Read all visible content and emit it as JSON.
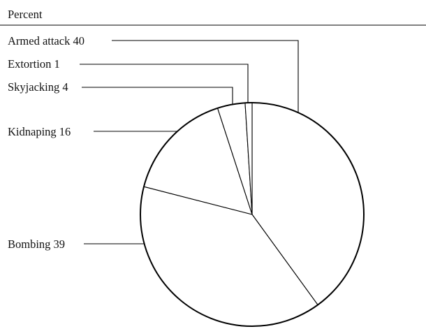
{
  "header": {
    "unit_label": "Percent"
  },
  "chart_data": {
    "type": "pie",
    "title": "",
    "unit": "Percent",
    "start_angle_deg": 0,
    "direction": "clockwise",
    "slices": [
      {
        "name": "Armed attack",
        "value": 40,
        "label": "Armed attack 40"
      },
      {
        "name": "Bombing",
        "value": 39,
        "label": "Bombing 39"
      },
      {
        "name": "Kidnaping",
        "value": 16,
        "label": "Kidnaping 16"
      },
      {
        "name": "Skyjacking",
        "value": 4,
        "label": "Skyjacking 4"
      },
      {
        "name": "Extortion",
        "value": 1,
        "label": "Extortion 1"
      }
    ],
    "colors": {
      "fill": "#ffffff",
      "stroke": "#000000"
    }
  }
}
